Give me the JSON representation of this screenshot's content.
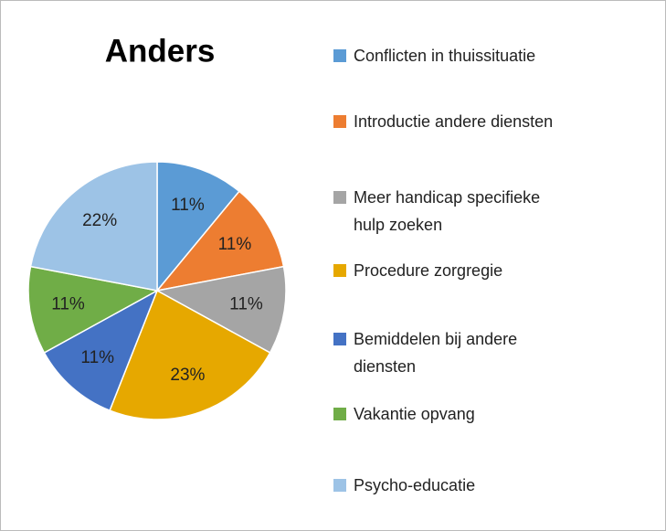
{
  "chart_data": {
    "type": "pie",
    "title": "Anders",
    "categories": [
      "Conflicten in thuissituatie",
      "Introductie andere diensten",
      "Meer handicap specifieke hulp zoeken",
      "Procedure zorgregie",
      "Bemiddelen bij andere diensten",
      "Vakantie opvang",
      "Psycho-educatie"
    ],
    "values": [
      11,
      11,
      11,
      23,
      11,
      11,
      22
    ],
    "value_labels": [
      "11%",
      "11%",
      "11%",
      "23%",
      "11%",
      "11%",
      "22%"
    ],
    "colors": [
      "#5b9bd5",
      "#ed7d31",
      "#a5a5a5",
      "#e6a800",
      "#4472c4",
      "#70ad47",
      "#9dc3e6"
    ],
    "legend": "right"
  }
}
